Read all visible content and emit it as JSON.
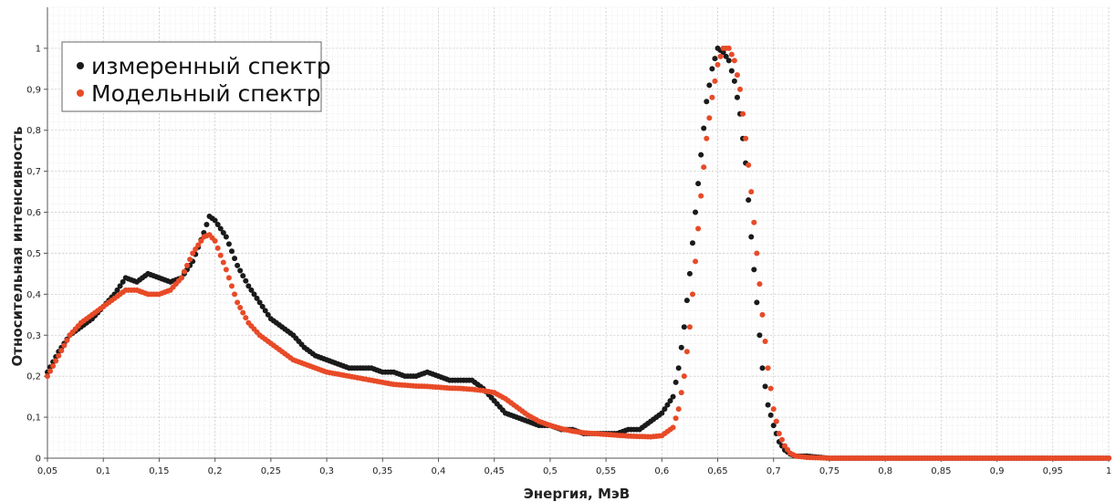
{
  "chart_data": {
    "type": "scatter",
    "title": "",
    "xlabel": "Энергия, МэВ",
    "ylabel": "Относительная интенсивность",
    "xlim": [
      0.05,
      1.0
    ],
    "ylim": [
      0,
      1.1
    ],
    "x_ticks": [
      0.05,
      0.1,
      0.15,
      0.2,
      0.25,
      0.3,
      0.35,
      0.4,
      0.45,
      0.5,
      0.55,
      0.6,
      0.65,
      0.7,
      0.75,
      0.8,
      0.85,
      0.9,
      0.95,
      1.0
    ],
    "x_tick_labels": [
      "0,05",
      "0,1",
      "0,15",
      "0,2",
      "0,25",
      "0,3",
      "0,35",
      "0,4",
      "0,45",
      "0,5",
      "0,55",
      "0,6",
      "0,65",
      "0,7",
      "0,75",
      "0,8",
      "0,85",
      "0,9",
      "0,95",
      "1"
    ],
    "y_ticks": [
      0,
      0.1,
      0.2,
      0.3,
      0.4,
      0.5,
      0.6,
      0.7,
      0.8,
      0.9,
      1.0
    ],
    "y_tick_labels": [
      "0",
      "0,1",
      "0,2",
      "0,3",
      "0,4",
      "0,5",
      "0,6",
      "0,7",
      "0,8",
      "0,9",
      "1"
    ],
    "grid": true,
    "legend": "top-left",
    "series": [
      {
        "name": "измеренный спектр",
        "color": "#1a1a1a",
        "x": [
          0.05,
          0.06,
          0.07,
          0.08,
          0.09,
          0.1,
          0.11,
          0.12,
          0.13,
          0.14,
          0.15,
          0.16,
          0.17,
          0.18,
          0.19,
          0.195,
          0.2,
          0.21,
          0.22,
          0.23,
          0.24,
          0.25,
          0.26,
          0.27,
          0.28,
          0.29,
          0.3,
          0.31,
          0.32,
          0.33,
          0.34,
          0.35,
          0.36,
          0.37,
          0.38,
          0.39,
          0.4,
          0.41,
          0.42,
          0.43,
          0.44,
          0.45,
          0.46,
          0.47,
          0.48,
          0.49,
          0.5,
          0.51,
          0.52,
          0.53,
          0.54,
          0.55,
          0.56,
          0.57,
          0.58,
          0.59,
          0.6,
          0.61,
          0.615,
          0.62,
          0.625,
          0.63,
          0.635,
          0.64,
          0.645,
          0.65,
          0.655,
          0.66,
          0.665,
          0.67,
          0.675,
          0.68,
          0.685,
          0.69,
          0.695,
          0.7,
          0.705,
          0.71,
          0.715,
          0.72,
          0.73,
          0.75,
          0.8,
          0.85,
          0.9,
          0.95,
          1.0
        ],
        "y": [
          0.21,
          0.26,
          0.3,
          0.32,
          0.34,
          0.37,
          0.4,
          0.44,
          0.43,
          0.45,
          0.44,
          0.43,
          0.44,
          0.48,
          0.55,
          0.59,
          0.58,
          0.54,
          0.47,
          0.42,
          0.38,
          0.34,
          0.32,
          0.3,
          0.27,
          0.25,
          0.24,
          0.23,
          0.22,
          0.22,
          0.22,
          0.21,
          0.21,
          0.2,
          0.2,
          0.21,
          0.2,
          0.19,
          0.19,
          0.19,
          0.17,
          0.14,
          0.11,
          0.1,
          0.09,
          0.08,
          0.08,
          0.07,
          0.07,
          0.06,
          0.06,
          0.06,
          0.06,
          0.07,
          0.07,
          0.09,
          0.11,
          0.15,
          0.22,
          0.32,
          0.45,
          0.6,
          0.74,
          0.87,
          0.95,
          1.0,
          0.99,
          0.97,
          0.92,
          0.84,
          0.72,
          0.54,
          0.38,
          0.22,
          0.13,
          0.08,
          0.04,
          0.02,
          0.01,
          0.005,
          0.005,
          0.0,
          0.0,
          0.0,
          0.0,
          0.0,
          0.0
        ]
      },
      {
        "name": "Модельный спектр",
        "color": "#e84a27",
        "x": [
          0.05,
          0.06,
          0.07,
          0.08,
          0.09,
          0.1,
          0.11,
          0.12,
          0.13,
          0.14,
          0.15,
          0.16,
          0.17,
          0.18,
          0.19,
          0.195,
          0.2,
          0.21,
          0.22,
          0.23,
          0.24,
          0.25,
          0.26,
          0.27,
          0.28,
          0.29,
          0.3,
          0.31,
          0.32,
          0.33,
          0.34,
          0.35,
          0.36,
          0.37,
          0.38,
          0.39,
          0.4,
          0.41,
          0.42,
          0.43,
          0.44,
          0.45,
          0.46,
          0.47,
          0.48,
          0.49,
          0.5,
          0.51,
          0.52,
          0.53,
          0.54,
          0.55,
          0.56,
          0.57,
          0.58,
          0.59,
          0.6,
          0.61,
          0.615,
          0.62,
          0.625,
          0.63,
          0.635,
          0.64,
          0.645,
          0.65,
          0.655,
          0.66,
          0.665,
          0.67,
          0.675,
          0.68,
          0.685,
          0.69,
          0.695,
          0.7,
          0.705,
          0.71,
          0.715,
          0.72,
          0.73,
          0.75,
          0.8,
          0.85,
          0.9,
          0.95,
          1.0
        ],
        "y": [
          0.2,
          0.25,
          0.3,
          0.33,
          0.35,
          0.37,
          0.39,
          0.41,
          0.41,
          0.4,
          0.4,
          0.41,
          0.44,
          0.5,
          0.54,
          0.545,
          0.53,
          0.46,
          0.38,
          0.33,
          0.3,
          0.28,
          0.26,
          0.24,
          0.23,
          0.22,
          0.21,
          0.205,
          0.2,
          0.195,
          0.19,
          0.185,
          0.18,
          0.178,
          0.176,
          0.175,
          0.173,
          0.171,
          0.17,
          0.168,
          0.165,
          0.16,
          0.145,
          0.125,
          0.105,
          0.09,
          0.08,
          0.072,
          0.066,
          0.062,
          0.06,
          0.058,
          0.056,
          0.054,
          0.053,
          0.052,
          0.055,
          0.075,
          0.12,
          0.2,
          0.32,
          0.48,
          0.64,
          0.78,
          0.88,
          0.96,
          1.0,
          1.0,
          0.97,
          0.9,
          0.78,
          0.65,
          0.5,
          0.35,
          0.22,
          0.12,
          0.06,
          0.03,
          0.012,
          0.005,
          0.002,
          0.0,
          0.0,
          0.0,
          0.0,
          0.0,
          0.0
        ]
      }
    ]
  }
}
